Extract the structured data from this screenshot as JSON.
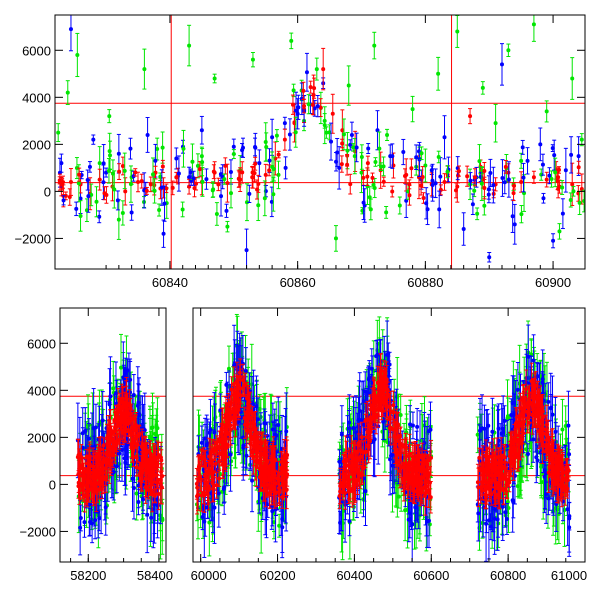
{
  "chart_data": [
    {
      "type": "scatter",
      "title": "",
      "xlabel": "",
      "ylabel": "",
      "xlim": [
        60822,
        60905
      ],
      "ylim": [
        -3300,
        7500
      ],
      "grid": false,
      "error_bars": true,
      "xticks": [
        60840,
        60860,
        60880,
        60900
      ],
      "xtick_labels": [
        "60840",
        "60860",
        "60880",
        "60900"
      ],
      "yticks": [
        -2000,
        0,
        2000,
        4000,
        6000
      ],
      "ytick_labels": [
        "−2000",
        "0",
        "2000",
        "4000",
        "6000"
      ],
      "hlines": [
        3750,
        370
      ],
      "vlines": [
        60840.2,
        60884.1
      ],
      "series": [
        {
          "color": "#00e600",
          "description": "green points with error bars",
          "x": [
            60822.5,
            60824,
            60825.5,
            60827,
            60829,
            60830.5,
            60832,
            60834,
            60836,
            60838,
            60839.5,
            60843,
            60845,
            60847,
            60849,
            60851,
            60853,
            60855,
            60857,
            60859,
            60861,
            60863,
            60864.5,
            60866,
            60868,
            60870,
            60872,
            60874,
            60876,
            60878,
            60880,
            60882,
            60885,
            60887,
            60889,
            60891,
            60893,
            60895,
            60897,
            60899,
            60901,
            60903,
            60904.5
          ],
          "y": [
            2500,
            4200,
            5800,
            -800,
            1200,
            3200,
            -1200,
            600,
            5200,
            1800,
            -500,
            6200,
            1500,
            4800,
            -1500,
            900,
            5600,
            2100,
            700,
            6400,
            3000,
            5200,
            2500,
            -2000,
            4500,
            800,
            6200,
            2400,
            -600,
            3500,
            1100,
            5000,
            6800,
            300,
            4400,
            2900,
            6000,
            1300,
            7100,
            3400,
            -1700,
            4800,
            2200
          ]
        },
        {
          "color": "#0000ff",
          "description": "blue points with error bars",
          "x": [
            60823,
            60824.5,
            60826,
            60828,
            60830,
            60832,
            60834,
            60836.5,
            60839,
            60841,
            60843,
            60845,
            60848,
            60850,
            60852,
            60854,
            60856,
            60858,
            60860,
            60862,
            60864,
            60866.5,
            60868.5,
            60870.5,
            60872.5,
            60874.5,
            60877,
            60879,
            60881,
            60883,
            60886,
            60888,
            60890,
            60892,
            60894,
            60896,
            60898,
            60900,
            60902,
            60904
          ],
          "y": [
            1200,
            6900,
            -300,
            2200,
            800,
            1600,
            -900,
            2400,
            -1800,
            1400,
            600,
            2600,
            -200,
            1900,
            -2500,
            1200,
            2300,
            2900,
            3300,
            3700,
            4600,
            1000,
            2400,
            -600,
            2600,
            1500,
            -400,
            1700,
            900,
            2300,
            -1600,
            600,
            -2800,
            5400,
            -1400,
            1300,
            2000,
            -2100,
            900,
            1500
          ]
        },
        {
          "color": "#ff0000",
          "description": "red points with error bars",
          "x": [
            60823,
            60824.5,
            60826,
            60827.5,
            60829,
            60831,
            60833,
            60835,
            60837,
            60839,
            60841,
            60843,
            60845,
            60847,
            60849,
            60851,
            60853,
            60855,
            60856.5,
            60858,
            60859.5,
            60861,
            60862.5,
            60864,
            60865.5,
            60867,
            60869,
            60871,
            60873,
            60875,
            60877,
            60879,
            60881,
            60883,
            60885,
            60887,
            60889,
            60891,
            60893,
            60895,
            60897,
            60899,
            60901,
            60903,
            60904.5
          ],
          "y": [
            200,
            400,
            300,
            -100,
            500,
            200,
            0,
            400,
            300,
            150,
            600,
            200,
            400,
            800,
            350,
            500,
            600,
            700,
            1400,
            2200,
            2900,
            3500,
            4100,
            5200,
            3300,
            2600,
            1700,
            1200,
            900,
            1100,
            700,
            600,
            300,
            400,
            200,
            3200,
            500,
            300,
            800,
            400,
            600,
            500,
            200,
            300,
            100
          ]
        }
      ]
    },
    {
      "type": "scatter",
      "title": "",
      "xlabel": "",
      "ylabel": "",
      "xlim": [
        58120,
        61000
      ],
      "ylim": [
        -3300,
        7500
      ],
      "grid": false,
      "error_bars": true,
      "axis_break": [
        58420,
        59980
      ],
      "xticks": [
        58200,
        58400,
        60000,
        60200,
        60400,
        60600,
        60800,
        61000
      ],
      "xtick_labels": [
        "58200",
        "58400",
        "60000",
        "60200",
        "60400",
        "60600",
        "60800",
        "61000"
      ],
      "yticks": [
        -2000,
        0,
        2000,
        4000,
        6000
      ],
      "ytick_labels": [
        "−2000",
        "0",
        "2000",
        "4000",
        "6000"
      ],
      "hlines": [
        3750,
        370
      ],
      "segments": [
        {
          "start": 58170,
          "end": 58410,
          "peak_x": 58300,
          "peak_y": 5200
        },
        {
          "start": 59990,
          "end": 60225,
          "peak_x": 60100,
          "peak_y": 6800
        },
        {
          "start": 60360,
          "end": 60600,
          "peak_x": 60470,
          "peak_y": 7000
        },
        {
          "start": 60720,
          "end": 60960,
          "peak_x": 60860,
          "peak_y": 6200
        }
      ],
      "series": [
        {
          "color": "#00e600",
          "description": "green points with error bars"
        },
        {
          "color": "#0000ff",
          "description": "blue points with error bars"
        },
        {
          "color": "#ff0000",
          "description": "red points with error bars"
        }
      ]
    }
  ]
}
